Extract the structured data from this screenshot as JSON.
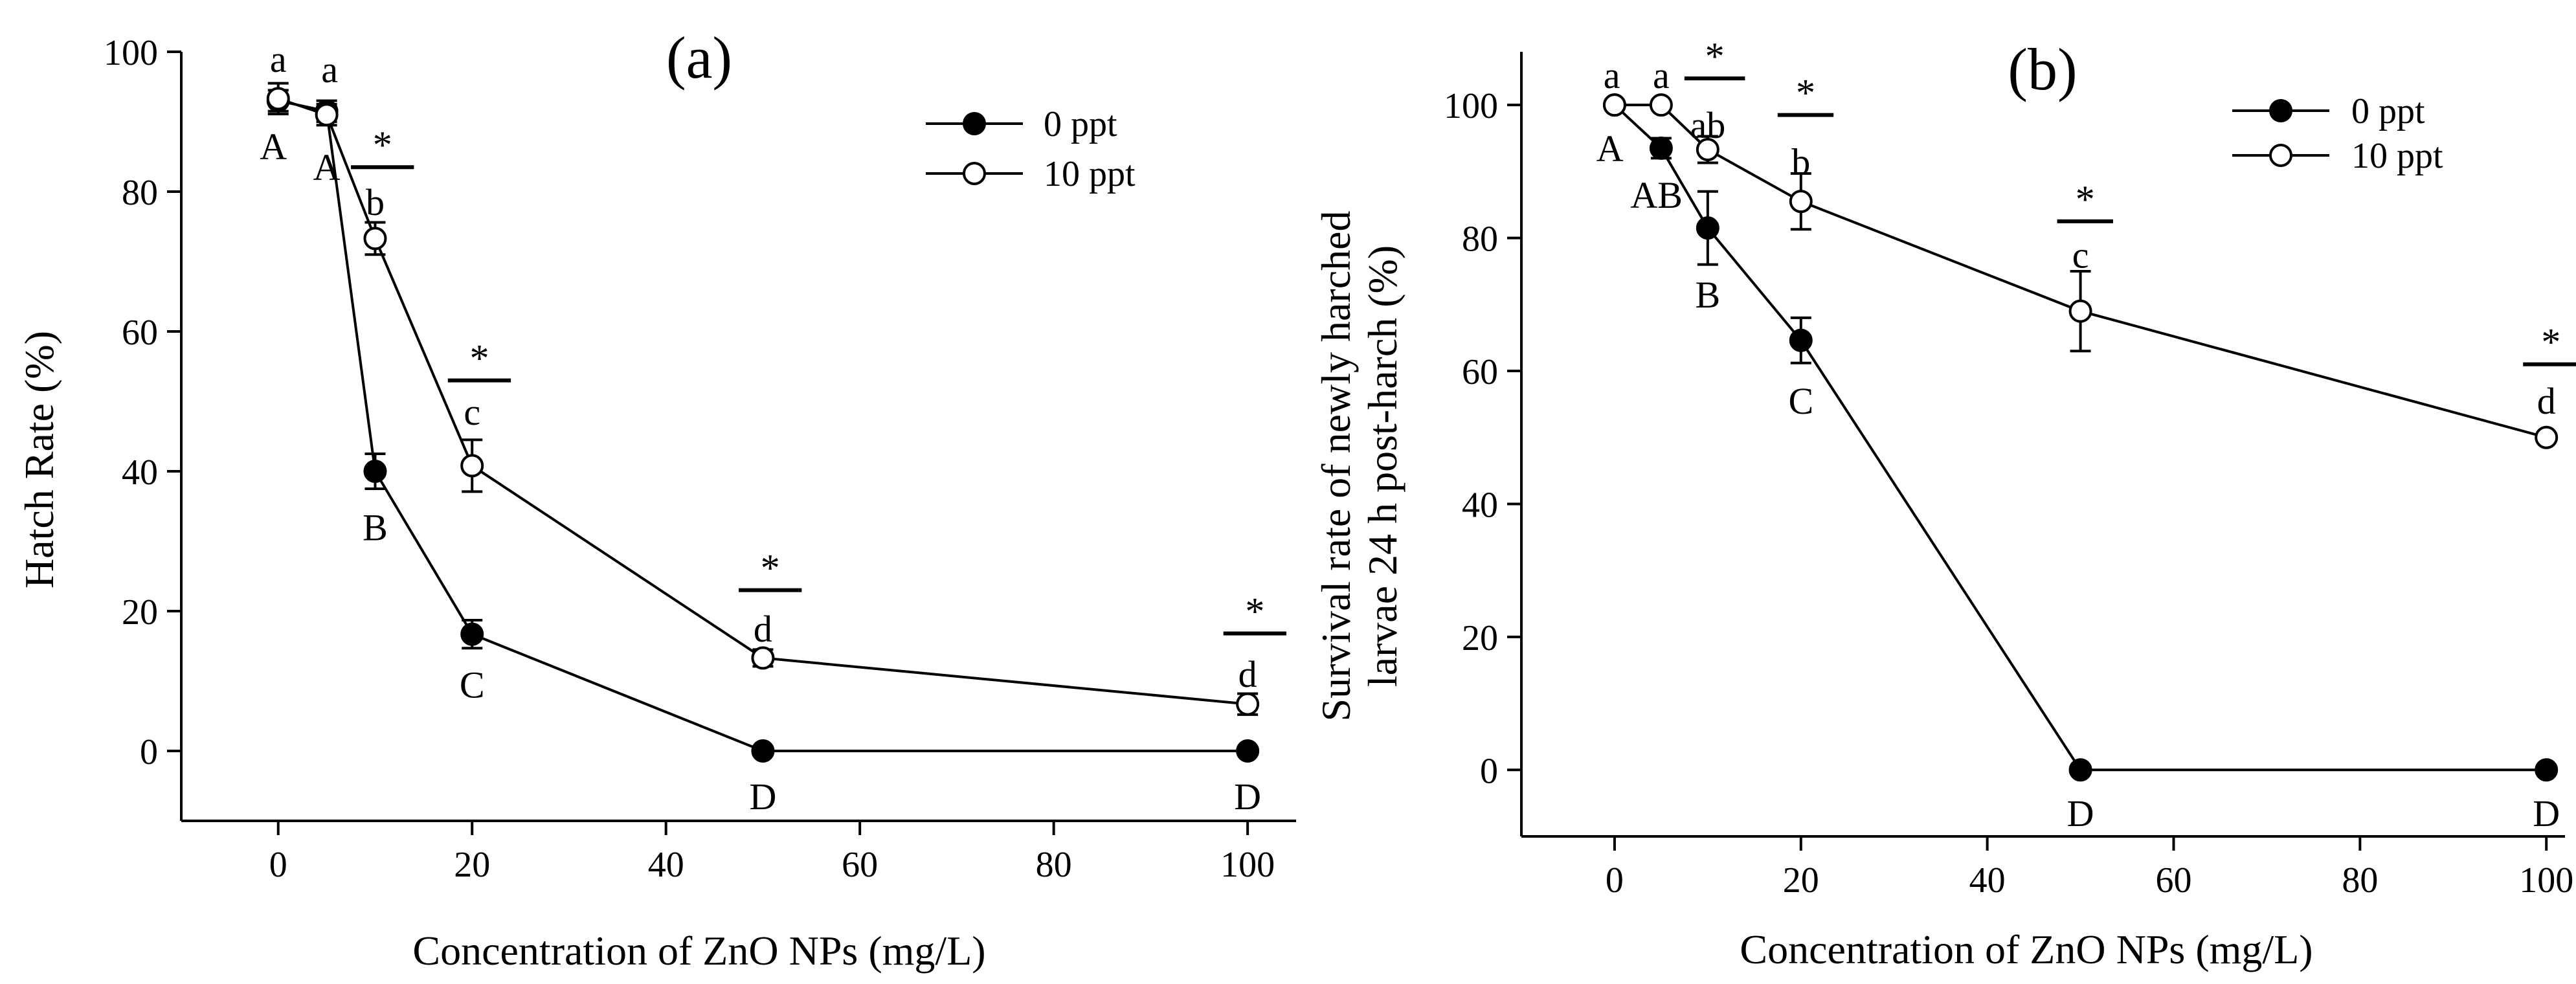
{
  "chart_data": [
    {
      "panel": "(a)",
      "type": "line",
      "title": "(a)",
      "xlabel": "Concentration of ZnO NPs  (mg/L)",
      "ylabel": "Hatch Rate (%)",
      "xlim": [
        -10,
        105
      ],
      "ylim": [
        -10,
        100
      ],
      "xticks": [
        0,
        20,
        40,
        60,
        80,
        100
      ],
      "yticks": [
        0,
        20,
        40,
        60,
        80,
        100
      ],
      "legend_position": "top-right",
      "series": [
        {
          "name": "0 ppt",
          "marker": "filled",
          "x": [
            0,
            5,
            10,
            20,
            50,
            100
          ],
          "y": [
            93,
            91.5,
            40,
            16.7,
            0,
            0
          ],
          "err": [
            1.5,
            1.5,
            2.5,
            2.0,
            0,
            0
          ]
        },
        {
          "name": "10 ppt",
          "marker": "open",
          "x": [
            0,
            5,
            10,
            20,
            50,
            100
          ],
          "y": [
            93.3,
            91,
            73.3,
            40.8,
            13.3,
            6.7
          ],
          "err": [
            2.2,
            1.5,
            2.3,
            3.7,
            1.2,
            1.5
          ]
        }
      ],
      "annotations": [
        {
          "text": "a",
          "x": 0,
          "y": 99
        },
        {
          "text": "a",
          "x": 5.3,
          "y": 97.5
        },
        {
          "text": "b",
          "x": 10,
          "y": 78.5
        },
        {
          "text": "c",
          "x": 20,
          "y": 48.5
        },
        {
          "text": "d",
          "x": 50,
          "y": 17.5
        },
        {
          "text": "d",
          "x": 100,
          "y": 11
        },
        {
          "text": "A",
          "x": -0.5,
          "y": 86.5
        },
        {
          "text": "A",
          "x": 5,
          "y": 83.5
        },
        {
          "text": "B",
          "x": 10,
          "y": 32
        },
        {
          "text": "C",
          "x": 20,
          "y": 9.5
        },
        {
          "text": "D",
          "x": 50,
          "y": -6.5
        },
        {
          "text": "D",
          "x": 100,
          "y": -6.5
        }
      ],
      "significance": [
        {
          "x0": 7.5,
          "x1": 14,
          "y": 83.5
        },
        {
          "x0": 17.5,
          "x1": 24,
          "y": 53
        },
        {
          "x0": 47.5,
          "x1": 54,
          "y": 23
        },
        {
          "x0": 97.5,
          "x1": 104,
          "y": 16.8
        }
      ]
    },
    {
      "panel": "(b)",
      "type": "line",
      "title": "(b)",
      "xlabel": "Concentration of ZnO NPs  (mg/L)",
      "ylabel_lines": [
        "Survival rate of newly harched",
        "larvae 24 h post-harch (%)"
      ],
      "xlim": [
        -10,
        102
      ],
      "ylim": [
        -10,
        108
      ],
      "xticks": [
        0,
        20,
        40,
        60,
        80,
        100
      ],
      "yticks": [
        0,
        20,
        40,
        60,
        80,
        100
      ],
      "legend_position": "top-right",
      "series": [
        {
          "name": "0 ppt",
          "marker": "filled",
          "x": [
            0,
            5,
            10,
            20,
            50,
            100
          ],
          "y": [
            100,
            93.5,
            81.5,
            64.6,
            0,
            0
          ],
          "err": [
            0,
            1.5,
            5.5,
            3.4,
            0,
            0
          ]
        },
        {
          "name": "10 ppt",
          "marker": "open",
          "x": [
            0,
            5,
            10,
            20,
            50,
            100
          ],
          "y": [
            100,
            100,
            93.3,
            85.5,
            69,
            50
          ],
          "err": [
            0,
            0,
            2,
            4.2,
            6,
            0
          ]
        }
      ],
      "annotations": [
        {
          "text": "a",
          "x": -0.3,
          "y": 104.5
        },
        {
          "text": "a",
          "x": 5,
          "y": 104.5
        },
        {
          "text": "ab",
          "x": 10,
          "y": 97
        },
        {
          "text": "b",
          "x": 20,
          "y": 91.5
        },
        {
          "text": "c",
          "x": 50,
          "y": 77.5
        },
        {
          "text": "d",
          "x": 100,
          "y": 55.5
        },
        {
          "text": "A",
          "x": -0.5,
          "y": 93.5
        },
        {
          "text": "AB",
          "x": 4.5,
          "y": 86.5
        },
        {
          "text": "B",
          "x": 10,
          "y": 71.5
        },
        {
          "text": "C",
          "x": 20,
          "y": 55.5
        },
        {
          "text": "D",
          "x": 50,
          "y": -6.5
        },
        {
          "text": "D",
          "x": 100,
          "y": -6.5
        }
      ],
      "significance": [
        {
          "x0": 7.5,
          "x1": 14,
          "y": 104
        },
        {
          "x0": 17.5,
          "x1": 23.5,
          "y": 98.5
        },
        {
          "x0": 47.5,
          "x1": 53.5,
          "y": 82.5
        },
        {
          "x0": 97.5,
          "x1": 103.5,
          "y": 61
        }
      ],
      "significance_label": "*"
    }
  ]
}
